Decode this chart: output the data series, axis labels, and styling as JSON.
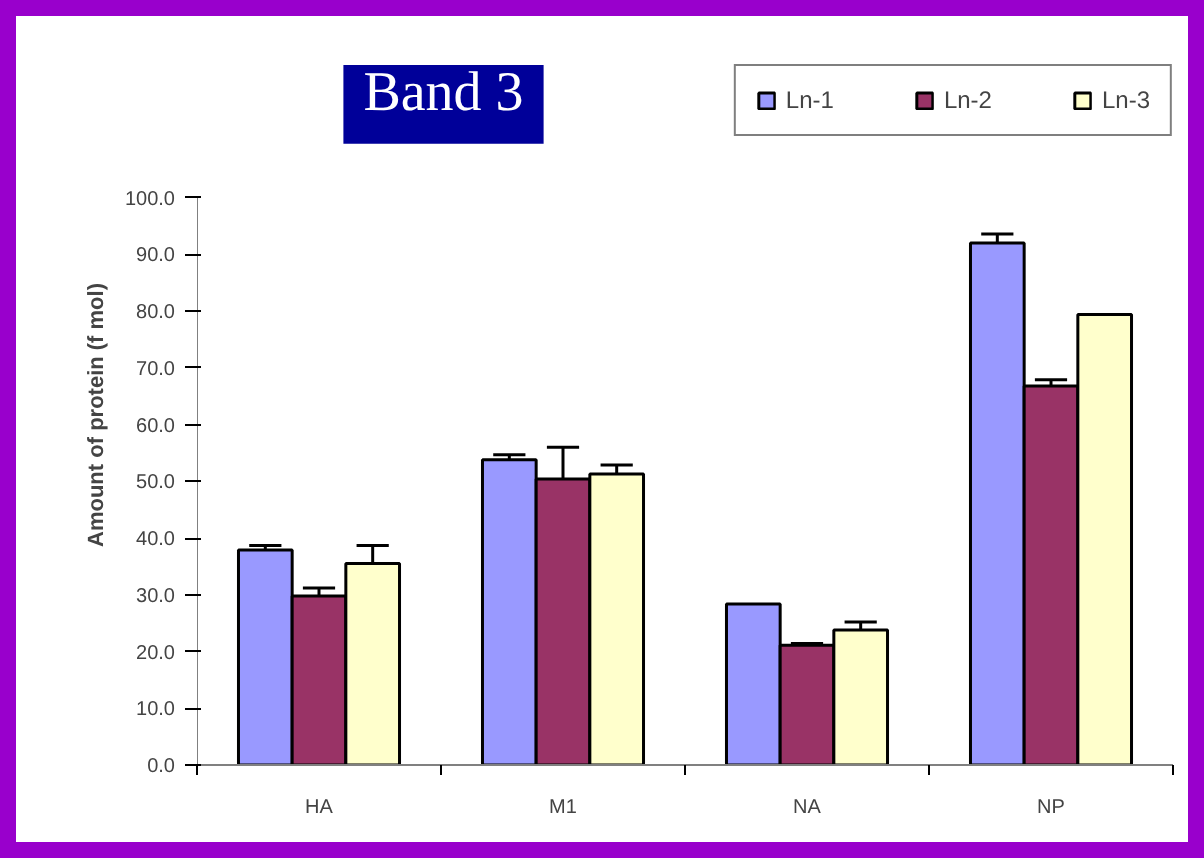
{
  "chart_data": {
    "type": "bar",
    "title": "Band 3",
    "ylabel": "Amount of protein (f mol)",
    "categories": [
      "HA",
      "M1",
      "NA",
      "NP"
    ],
    "series": [
      {
        "name": "Ln-1",
        "color": "#9999ff",
        "values": [
          37.9,
          53.8,
          28.4,
          92.0
        ],
        "errors": [
          [
            37.9,
            38.7
          ],
          [
            53.8,
            54.7
          ],
          null,
          [
            92.0,
            93.6
          ]
        ]
      },
      {
        "name": "Ln-2",
        "color": "#993366",
        "values": [
          29.8,
          50.4,
          21.1,
          66.8
        ],
        "errors": [
          [
            29.8,
            31.2
          ],
          [
            50.4,
            56.0
          ],
          [
            21.1,
            21.4
          ],
          [
            66.8,
            67.9
          ]
        ]
      },
      {
        "name": "Ln-3",
        "color": "#ffffcc",
        "values": [
          35.5,
          51.3,
          23.8,
          79.4
        ],
        "errors": [
          [
            35.5,
            38.7
          ],
          [
            51.3,
            52.9
          ],
          [
            23.8,
            25.2
          ],
          null
        ]
      }
    ],
    "ylim": [
      0,
      100
    ],
    "yticks": [
      {
        "value": 0,
        "label": "0.0"
      },
      {
        "value": 10,
        "label": "10.0"
      },
      {
        "value": 20,
        "label": "20.0"
      },
      {
        "value": 30,
        "label": "30.0"
      },
      {
        "value": 40,
        "label": "40.0"
      },
      {
        "value": 50,
        "label": "50.0"
      },
      {
        "value": 60,
        "label": "60.0"
      },
      {
        "value": 70,
        "label": "70.0"
      },
      {
        "value": 80,
        "label": "80.0"
      },
      {
        "value": 90,
        "label": "90.0"
      },
      {
        "value": 100,
        "label": "100.0"
      }
    ],
    "grid": false,
    "legend": "top right"
  }
}
